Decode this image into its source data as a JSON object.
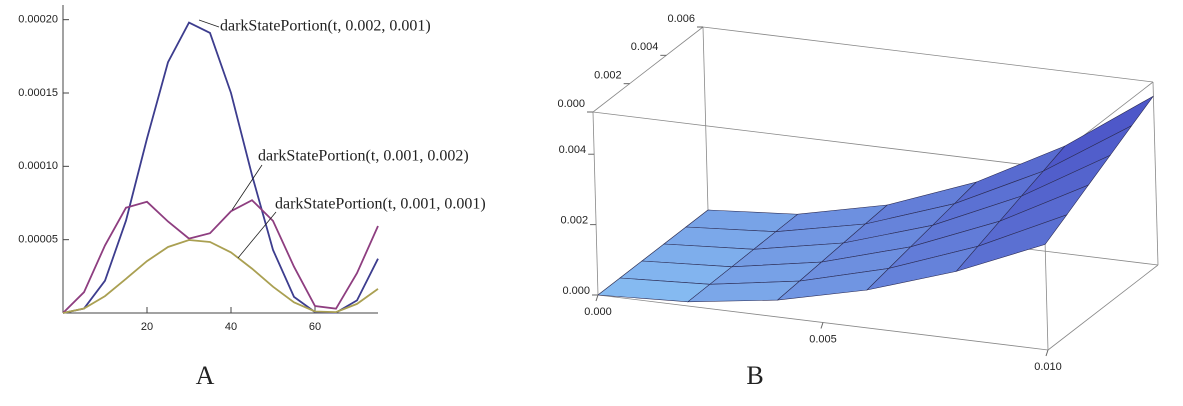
{
  "chart_data": [
    {
      "type": "line",
      "label": "A",
      "x": [
        0,
        5,
        10,
        15,
        20,
        25,
        30,
        35,
        40,
        45,
        50,
        55,
        60,
        65,
        70,
        75
      ],
      "series": [
        {
          "name": "darkStatePortion(t, 0.002, 0.001)",
          "color": "#3d3d8e",
          "values": [
            0,
            3e-06,
            2.2e-05,
            6.3e-05,
            0.000119,
            0.000171,
            0.000198,
            0.000191,
            0.00015,
            9.4e-05,
            4.3e-05,
            1.1e-05,
            6e-07,
            3e-07,
            8.6e-06,
            3.7e-05
          ]
        },
        {
          "name": "darkStatePortion(t, 0.001, 0.002)",
          "color": "#8e3e80",
          "values": [
            0,
            1.42e-05,
            4.61e-05,
            7.18e-05,
            7.58e-05,
            6.24e-05,
            5.07e-05,
            5.44e-05,
            6.94e-05,
            7.69e-05,
            6.28e-05,
            3.16e-05,
            4.8e-06,
            2.9e-06,
            2.72e-05,
            5.93e-05
          ]
        },
        {
          "name": "darkStatePortion(t, 0.001, 0.001)",
          "color": "#aaa052",
          "values": [
            0,
            3.1e-06,
            1.15e-05,
            2.33e-05,
            3.54e-05,
            4.5e-05,
            4.98e-05,
            4.84e-05,
            4.13e-05,
            3.03e-05,
            1.79e-05,
            7.3e-06,
            1e-06,
            6e-07,
            6.2e-06,
            1.64e-05
          ]
        }
      ],
      "xlim": [
        0,
        75
      ],
      "ylim": [
        0,
        0.00021
      ],
      "xticks": [
        20,
        40,
        60
      ],
      "yticks": [
        5e-05,
        {
          "value": 0.0001,
          "label": "0.00010"
        },
        0.00015,
        {
          "value": 0.0002,
          "label": "0.00020"
        }
      ]
    },
    {
      "type": "surface",
      "label": "B",
      "x": [
        0,
        0.002,
        0.004,
        0.006,
        0.008,
        0.01
      ],
      "y": [
        0,
        0.0012,
        0.0024,
        0.0036,
        0.0048,
        0.006
      ],
      "z": [
        [
          0,
          0.00012,
          0.00048,
          0.00108,
          0.00192,
          0.003
        ],
        [
          0,
          0.000134,
          0.000538,
          0.00121,
          0.00215,
          0.00336
        ],
        [
          0,
          0.000149,
          0.000595,
          0.00134,
          0.00238,
          0.00372
        ],
        [
          0,
          0.000163,
          0.000653,
          0.00147,
          0.00261,
          0.00408
        ],
        [
          0,
          0.000178,
          0.00071,
          0.0016,
          0.00284,
          0.00444
        ],
        [
          0,
          0.000192,
          0.000768,
          0.00173,
          0.00307,
          0.0048
        ]
      ],
      "colors": [
        "#8cc6f6",
        "#4a52c6"
      ],
      "xlim": [
        0,
        0.01
      ],
      "ylim": [
        0,
        0.006
      ],
      "zlim": [
        0,
        0.0052
      ],
      "xticks": [
        {
          "value": 0,
          "label": "0.000"
        },
        0.005,
        {
          "value": 0.01,
          "label": "0.010"
        }
      ],
      "yticks": [
        {
          "value": 0,
          "label": "0.000"
        },
        0.002,
        0.004,
        0.006
      ],
      "zticks": [
        {
          "value": 0,
          "label": "0.000"
        },
        0.002,
        0.004
      ]
    }
  ]
}
